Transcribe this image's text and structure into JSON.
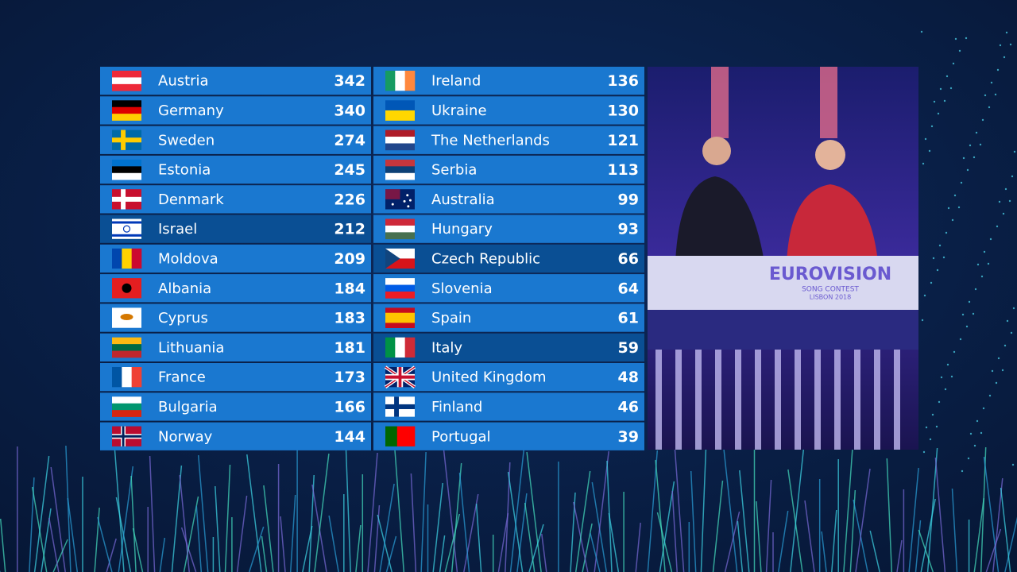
{
  "scoreboard": {
    "rows": [
      {
        "country": "Austria",
        "points": 342,
        "highlighted": false
      },
      {
        "country": "Germany",
        "points": 340,
        "highlighted": false
      },
      {
        "country": "Sweden",
        "points": 274,
        "highlighted": false
      },
      {
        "country": "Estonia",
        "points": 245,
        "highlighted": false
      },
      {
        "country": "Denmark",
        "points": 226,
        "highlighted": false
      },
      {
        "country": "Israel",
        "points": 212,
        "highlighted": true
      },
      {
        "country": "Moldova",
        "points": 209,
        "highlighted": false
      },
      {
        "country": "Albania",
        "points": 184,
        "highlighted": false
      },
      {
        "country": "Cyprus",
        "points": 183,
        "highlighted": false
      },
      {
        "country": "Lithuania",
        "points": 181,
        "highlighted": false
      },
      {
        "country": "France",
        "points": 173,
        "highlighted": false
      },
      {
        "country": "Bulgaria",
        "points": 166,
        "highlighted": false
      },
      {
        "country": "Norway",
        "points": 144,
        "highlighted": false
      },
      {
        "country": "Ireland",
        "points": 136,
        "highlighted": false
      },
      {
        "country": "Ukraine",
        "points": 130,
        "highlighted": false
      },
      {
        "country": "The Netherlands",
        "points": 121,
        "highlighted": false
      },
      {
        "country": "Serbia",
        "points": 113,
        "highlighted": false
      },
      {
        "country": "Australia",
        "points": 99,
        "highlighted": false
      },
      {
        "country": "Hungary",
        "points": 93,
        "highlighted": false
      },
      {
        "country": "Czech Republic",
        "points": 66,
        "highlighted": true
      },
      {
        "country": "Slovenia",
        "points": 64,
        "highlighted": false
      },
      {
        "country": "Spain",
        "points": 61,
        "highlighted": false
      },
      {
        "country": "Italy",
        "points": 59,
        "highlighted": true
      },
      {
        "country": "United Kingdom",
        "points": 48,
        "highlighted": false
      },
      {
        "country": "Finland",
        "points": 46,
        "highlighted": false
      },
      {
        "country": "Portugal",
        "points": 39,
        "highlighted": false
      }
    ]
  },
  "logo": {
    "title": "EUROVISION",
    "subtitle": "SONG CONTEST",
    "location": "LISBON 2018"
  }
}
